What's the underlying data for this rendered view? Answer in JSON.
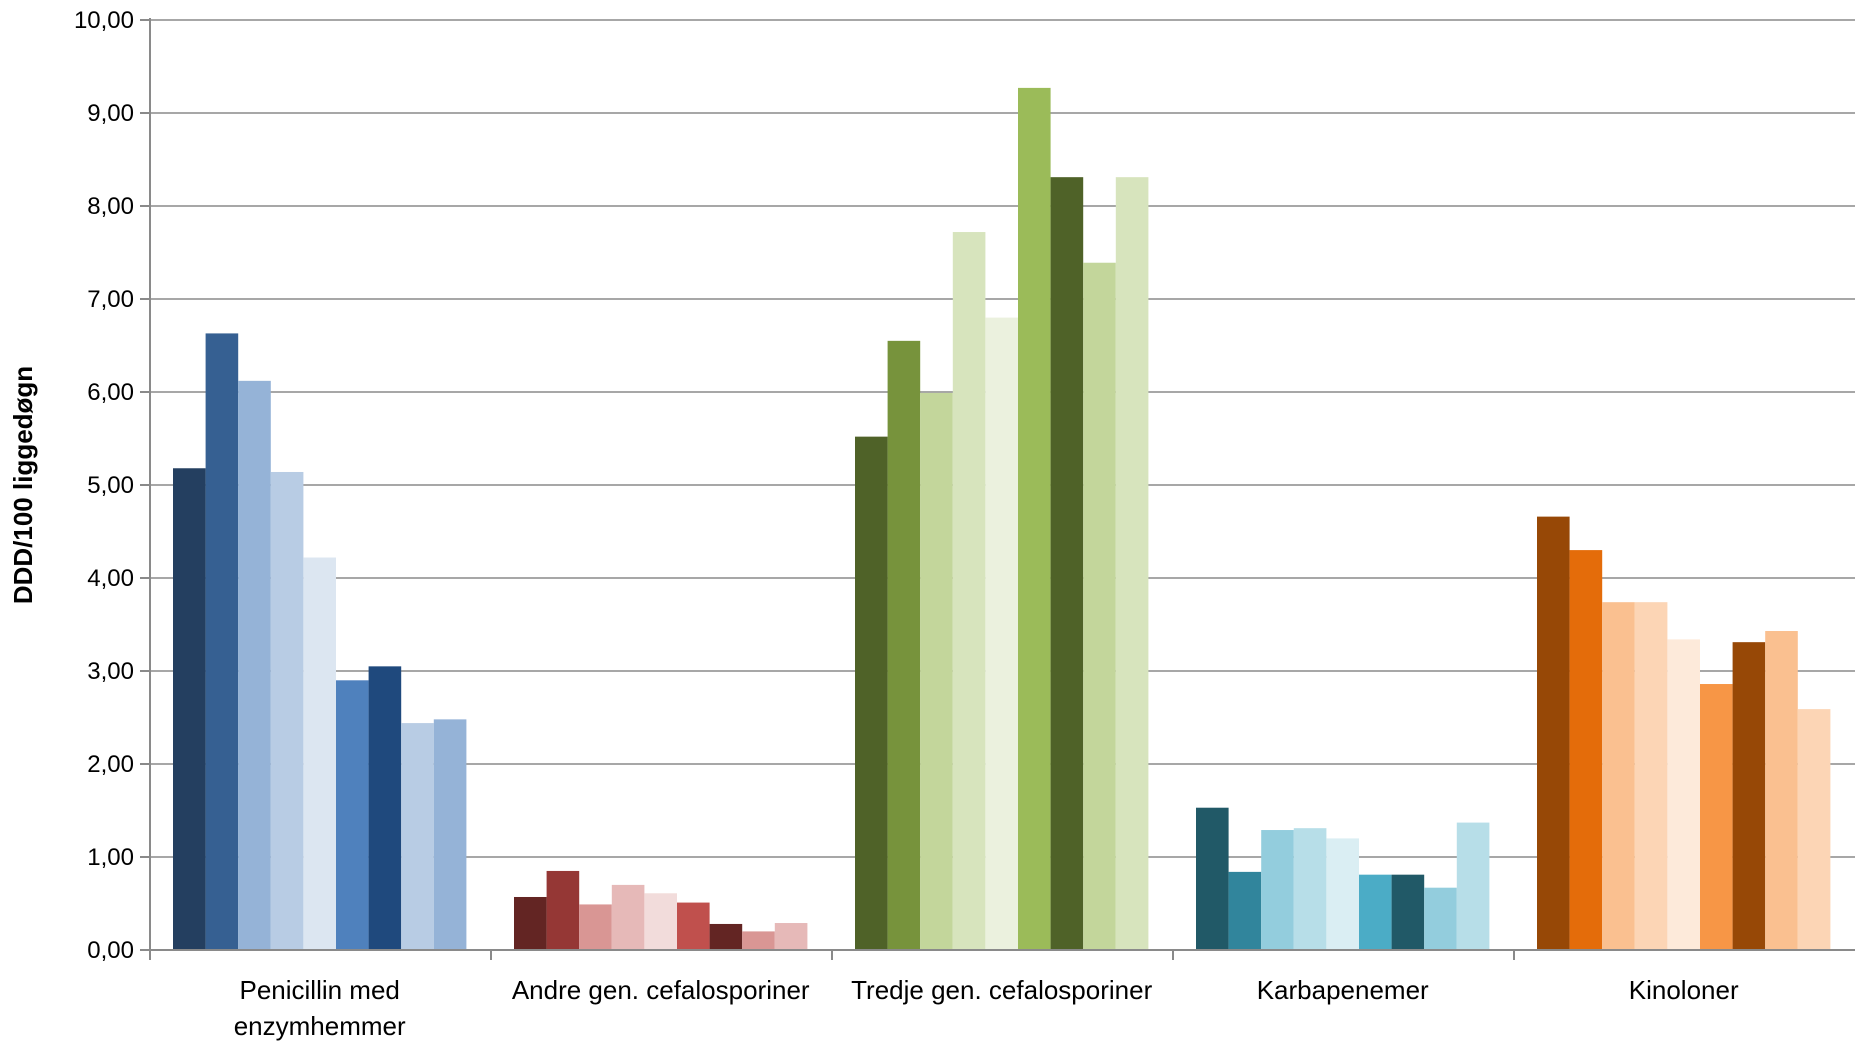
{
  "chart_data": {
    "type": "bar",
    "title": "",
    "xlabel": "",
    "ylabel": "DDD/100 liggedøgn",
    "ylim": [
      0,
      10
    ],
    "y_ticks": [
      "0,00",
      "1,00",
      "2,00",
      "3,00",
      "4,00",
      "5,00",
      "6,00",
      "7,00",
      "8,00",
      "9,00",
      "10,00"
    ],
    "grid": true,
    "legend": "none",
    "categories": [
      {
        "label_lines": [
          "Penicillin med",
          "enzymhemmer"
        ],
        "values": [
          5.18,
          6.63,
          6.12,
          5.14,
          4.22,
          2.9,
          3.05,
          2.44,
          2.48
        ],
        "colors": [
          "#243f60",
          "#366092",
          "#95b3d7",
          "#b8cce4",
          "#dce6f1",
          "#4f81bd",
          "#1f497d",
          "#b8cce4",
          "#95b3d7"
        ]
      },
      {
        "label_lines": [
          "Andre gen. cefalosporiner"
        ],
        "values": [
          0.57,
          0.85,
          0.49,
          0.7,
          0.61,
          0.51,
          0.28,
          0.2,
          0.29
        ],
        "colors": [
          "#632523",
          "#953735",
          "#d99694",
          "#e6b9b8",
          "#f2dcdb",
          "#c0504d",
          "#632523",
          "#d99694",
          "#e6b9b8"
        ]
      },
      {
        "label_lines": [
          "Tredje gen. cefalosporiner"
        ],
        "values": [
          5.52,
          6.55,
          5.99,
          7.72,
          6.8,
          9.27,
          8.31,
          7.39,
          8.31
        ],
        "colors": [
          "#4f6228",
          "#77933c",
          "#c3d69b",
          "#d7e4bd",
          "#ebf1de",
          "#9bbb59",
          "#4f6228",
          "#c3d69b",
          "#d7e4bd"
        ]
      },
      {
        "label_lines": [
          "Karbapenemer"
        ],
        "values": [
          1.53,
          0.84,
          1.29,
          1.31,
          1.2,
          0.81,
          0.81,
          0.67,
          1.37
        ],
        "colors": [
          "#215967",
          "#31859c",
          "#93cddd",
          "#b7dee8",
          "#daeef3",
          "#4bacc6",
          "#215967",
          "#93cddd",
          "#b7dee8"
        ]
      },
      {
        "label_lines": [
          "Kinoloner"
        ],
        "values": [
          4.66,
          4.3,
          3.74,
          3.74,
          3.34,
          2.86,
          3.31,
          3.43,
          2.59
        ],
        "colors": [
          "#974806",
          "#e46c0a",
          "#fac090",
          "#fcd5b5",
          "#fdeada",
          "#f79646",
          "#974806",
          "#fac090",
          "#fcd5b5"
        ]
      }
    ]
  }
}
